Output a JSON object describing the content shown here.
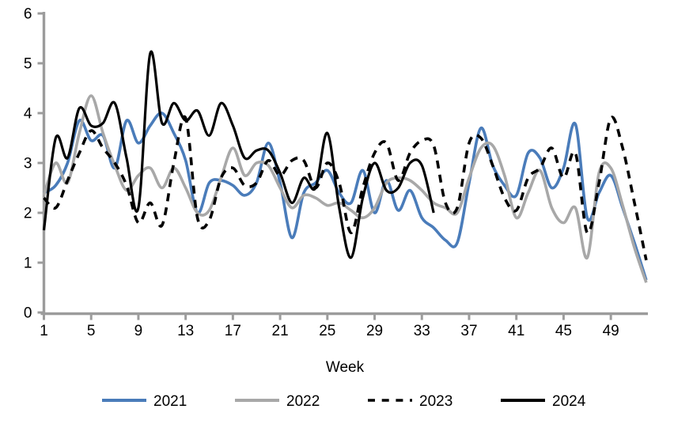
{
  "chart_data": {
    "type": "line",
    "title": "",
    "xlabel": "Week",
    "ylabel": "",
    "ylim": [
      0,
      6
    ],
    "yticks": [
      0,
      1,
      2,
      3,
      4,
      5,
      6
    ],
    "xticks": [
      1,
      5,
      9,
      13,
      17,
      21,
      25,
      29,
      33,
      37,
      41,
      45,
      49
    ],
    "x_range": [
      1,
      52
    ],
    "grid": false,
    "legend_position": "bottom",
    "axis_color": "#9c9c9c",
    "background_color": "#ffffff",
    "series": [
      {
        "name": "2021",
        "color": "#4a7cba",
        "style": "solid",
        "start_week": 1,
        "values": [
          2.4,
          2.55,
          3.0,
          3.85,
          3.45,
          3.55,
          2.9,
          3.85,
          3.4,
          3.75,
          4.0,
          3.6,
          3.05,
          2.0,
          2.6,
          2.65,
          2.55,
          2.35,
          2.6,
          3.4,
          2.6,
          1.5,
          2.4,
          2.6,
          2.85,
          2.4,
          2.2,
          2.85,
          2.0,
          2.65,
          2.05,
          2.45,
          1.9,
          1.7,
          1.45,
          1.4,
          2.6,
          3.7,
          2.95,
          2.55,
          2.35,
          3.2,
          3.1,
          2.5,
          2.9,
          3.78,
          1.9,
          2.4,
          2.75,
          2.1,
          1.4,
          0.65
        ]
      },
      {
        "name": "2022",
        "color": "#a8a8a8",
        "style": "solid",
        "start_week": 1,
        "values": [
          2.35,
          3.0,
          2.6,
          3.6,
          4.35,
          3.6,
          2.95,
          2.45,
          2.75,
          2.9,
          2.5,
          2.9,
          2.5,
          2.0,
          2.05,
          2.7,
          3.3,
          2.75,
          3.0,
          2.95,
          2.5,
          2.1,
          2.35,
          2.3,
          2.15,
          2.2,
          2.05,
          1.9,
          2.1,
          2.6,
          2.7,
          2.65,
          2.45,
          2.2,
          2.1,
          2.0,
          2.7,
          3.3,
          3.35,
          2.75,
          1.9,
          2.4,
          2.85,
          2.1,
          1.8,
          2.1,
          1.1,
          2.8,
          2.9,
          2.15,
          1.3,
          0.6
        ]
      },
      {
        "name": "2023",
        "color": "#000000",
        "style": "dashed",
        "start_week": 1,
        "values": [
          2.3,
          2.1,
          2.65,
          3.2,
          3.65,
          3.3,
          3.0,
          2.55,
          1.8,
          2.2,
          1.75,
          3.0,
          3.9,
          1.9,
          1.85,
          2.7,
          2.9,
          2.55,
          2.6,
          3.05,
          2.75,
          3.05,
          3.05,
          2.5,
          3.0,
          2.6,
          1.6,
          2.5,
          3.2,
          3.4,
          2.65,
          3.2,
          3.45,
          3.35,
          2.2,
          2.1,
          3.4,
          3.5,
          2.95,
          2.3,
          2.05,
          2.7,
          2.9,
          3.3,
          2.7,
          3.2,
          1.6,
          2.6,
          3.9,
          3.3,
          2.2,
          1.05
        ]
      },
      {
        "name": "2024",
        "color": "#000000",
        "style": "solid",
        "start_week": 1,
        "values": [
          1.65,
          3.5,
          3.1,
          4.1,
          3.75,
          3.8,
          4.2,
          3.1,
          2.1,
          5.2,
          3.8,
          4.2,
          3.85,
          4.05,
          3.55,
          4.2,
          3.75,
          3.1,
          3.25,
          3.25,
          2.8,
          2.2,
          2.7,
          2.5,
          3.6,
          2.1,
          1.1,
          2.3,
          3.0,
          2.45,
          2.5,
          3.0,
          2.95,
          2.0
        ]
      }
    ]
  }
}
